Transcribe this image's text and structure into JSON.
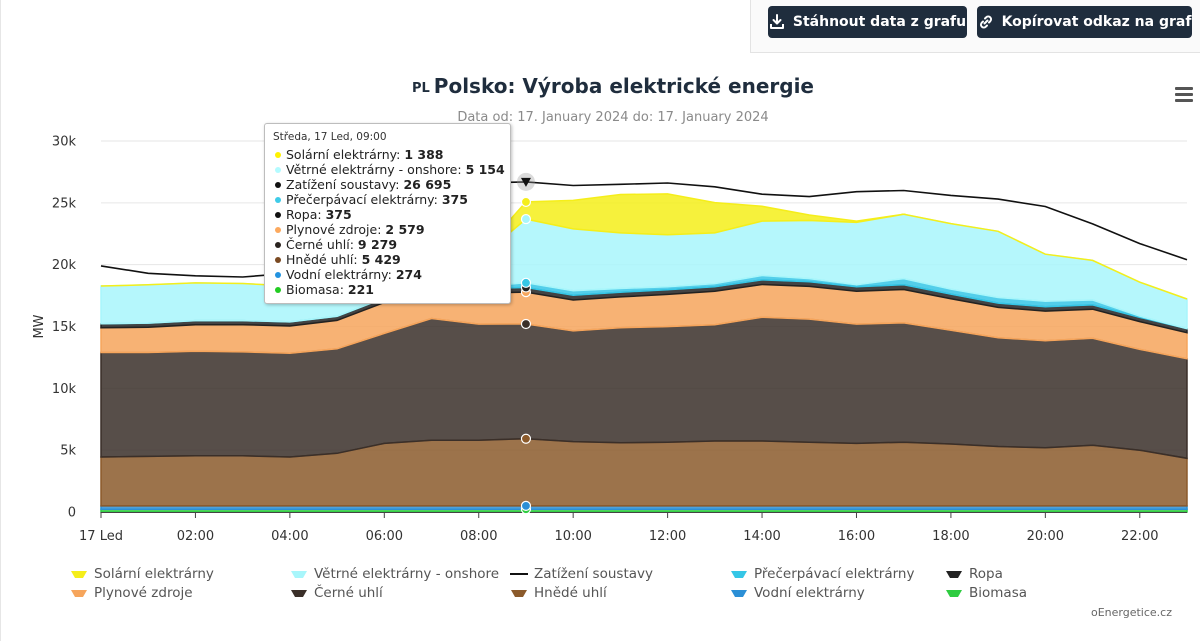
{
  "toolbar": {
    "download_label": "Stáhnout data z grafu",
    "copy_label": "Kopírovat odkaz na graf"
  },
  "header": {
    "country_code": "PL",
    "title": "Polsko: Výroba elektrické energie",
    "subtitle": "Data od: 17. January 2024 do: 17. January 2024"
  },
  "tooltip": {
    "header": "Středa, 17 Led, 09:00",
    "rows": [
      {
        "label": "Solární elektrárny",
        "value": "1 388",
        "color": "#fff200"
      },
      {
        "label": "Větrné elektrárny - onshore",
        "value": "5 154",
        "color": "#b3fbff"
      },
      {
        "label": "Zatížení soustavy",
        "value": "26 695",
        "color": "#111111"
      },
      {
        "label": "Přečerpávací elektrárny",
        "value": "375",
        "color": "#3fcbe8"
      },
      {
        "label": "Ropa",
        "value": "375",
        "color": "#111111"
      },
      {
        "label": "Plynové zdroje",
        "value": "2 579",
        "color": "#fca95e"
      },
      {
        "label": "Černé uhlí",
        "value": "9 279",
        "color": "#2a231f"
      },
      {
        "label": "Hnědé uhlí",
        "value": "5 429",
        "color": "#7a4a22"
      },
      {
        "label": "Vodní elektrárny",
        "value": "274",
        "color": "#2393e0"
      },
      {
        "label": "Biomasa",
        "value": "221",
        "color": "#22cc22"
      }
    ]
  },
  "legend": {
    "items": [
      {
        "label": "Solární elektrárny",
        "color": "#f5ee1a"
      },
      {
        "label": "Větrné elektrárny - onshore",
        "color": "#a8f6fb"
      },
      {
        "label": "Zatížení soustavy",
        "color": "#111111"
      },
      {
        "label": "Přečerpávací elektrárny",
        "color": "#35c6e6"
      },
      {
        "label": "Ropa",
        "color": "#222222"
      },
      {
        "label": "Plynové zdroje",
        "color": "#f6a55c"
      },
      {
        "label": "Černé uhlí",
        "color": "#3a2f29"
      },
      {
        "label": "Hnědé uhlí",
        "color": "#8b5a2b"
      },
      {
        "label": "Vodní elektrárny",
        "color": "#2b8fd6"
      },
      {
        "label": "Biomasa",
        "color": "#2ecc40"
      }
    ]
  },
  "credit": "oEnergetice.cz",
  "chart_data": {
    "type": "area",
    "x": [
      "00:00",
      "01:00",
      "02:00",
      "03:00",
      "04:00",
      "05:00",
      "06:00",
      "07:00",
      "08:00",
      "09:00",
      "10:00",
      "11:00",
      "12:00",
      "13:00",
      "14:00",
      "15:00",
      "16:00",
      "17:00",
      "18:00",
      "19:00",
      "20:00",
      "21:00",
      "22:00",
      "23:00"
    ],
    "x_tick_labels": [
      "17 Led",
      "02:00",
      "04:00",
      "06:00",
      "08:00",
      "10:00",
      "12:00",
      "14:00",
      "16:00",
      "18:00",
      "20:00",
      "22:00"
    ],
    "ylabel": "MW",
    "y_tick_labels": [
      "0",
      "5k",
      "10k",
      "15k",
      "20k",
      "25k",
      "30k"
    ],
    "ylim": [
      0,
      30000
    ],
    "stacked": true,
    "grid": true,
    "series": [
      {
        "name": "Biomasa",
        "color": "#2ecc40",
        "values": [
          220,
          220,
          220,
          220,
          220,
          220,
          220,
          221,
          221,
          221,
          221,
          221,
          221,
          221,
          221,
          221,
          221,
          221,
          221,
          221,
          221,
          221,
          221,
          221
        ]
      },
      {
        "name": "Vodní elektrárny",
        "color": "#2b8fd6",
        "values": [
          274,
          274,
          274,
          274,
          274,
          274,
          274,
          274,
          274,
          274,
          274,
          274,
          274,
          274,
          274,
          274,
          274,
          274,
          274,
          274,
          274,
          274,
          274,
          274
        ]
      },
      {
        "name": "Hnědé uhlí",
        "color": "#8b5a2b",
        "values": [
          3950,
          4000,
          4050,
          4050,
          3950,
          4250,
          5050,
          5300,
          5300,
          5429,
          5200,
          5100,
          5150,
          5250,
          5250,
          5150,
          5050,
          5150,
          5000,
          4800,
          4700,
          4900,
          4500,
          3850
        ]
      },
      {
        "name": "Černé uhlí",
        "color": "#3a2f29",
        "values": [
          8450,
          8400,
          8450,
          8400,
          8400,
          8450,
          8900,
          9850,
          9400,
          9279,
          8950,
          9300,
          9350,
          9400,
          10000,
          9950,
          9650,
          9650,
          9200,
          8800,
          8650,
          8650,
          8150,
          8050
        ]
      },
      {
        "name": "Plynové zdroje",
        "color": "#f6a55c",
        "values": [
          2000,
          2050,
          2150,
          2200,
          2200,
          2300,
          2500,
          2400,
          2500,
          2579,
          2500,
          2500,
          2600,
          2700,
          2650,
          2650,
          2650,
          2700,
          2550,
          2450,
          2400,
          2350,
          2250,
          2100
        ]
      },
      {
        "name": "Ropa",
        "color": "#222222",
        "values": [
          330,
          330,
          330,
          330,
          330,
          330,
          360,
          375,
          375,
          375,
          375,
          375,
          375,
          375,
          375,
          375,
          375,
          375,
          375,
          350,
          350,
          350,
          340,
          330
        ]
      },
      {
        "name": "Přečerpávací elektrárny",
        "color": "#35c6e6",
        "values": [
          0,
          0,
          0,
          0,
          0,
          0,
          0,
          0,
          150,
          375,
          375,
          300,
          250,
          250,
          350,
          250,
          150,
          500,
          400,
          450,
          450,
          400,
          100,
          0
        ]
      },
      {
        "name": "Větrné elektrárny - onshore",
        "color": "#a8f6fb",
        "values": [
          3050,
          3100,
          3050,
          3000,
          2900,
          2650,
          2150,
          2100,
          2250,
          5154,
          5000,
          4500,
          4200,
          4100,
          4400,
          4700,
          5050,
          5200,
          5300,
          5350,
          3800,
          3200,
          2750,
          2400
        ]
      },
      {
        "name": "Solární elektrárny",
        "color": "#f5ee1a",
        "values": [
          0,
          0,
          0,
          0,
          0,
          0,
          0,
          0,
          300,
          1388,
          2300,
          3100,
          3300,
          2450,
          1200,
          450,
          100,
          0,
          0,
          0,
          0,
          0,
          0,
          0
        ]
      }
    ],
    "load_series": {
      "name": "Zatížení soustavy",
      "color": "#111111",
      "values": [
        19900,
        19300,
        19100,
        19000,
        19300,
        20600,
        23400,
        25800,
        26600,
        26695,
        26400,
        26500,
        26600,
        26300,
        25700,
        25500,
        25900,
        26000,
        25600,
        25300,
        24700,
        23300,
        21700,
        20400
      ]
    },
    "tooltip_index": 9
  }
}
